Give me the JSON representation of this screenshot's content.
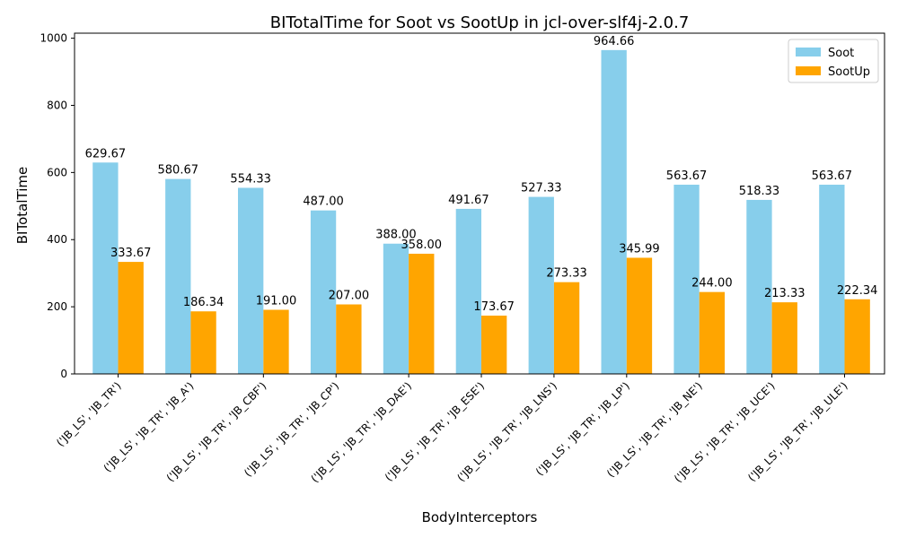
{
  "chart_data": {
    "type": "bar",
    "title": "BITotalTime for Soot vs SootUp in jcl-over-slf4j-2.0.7",
    "xlabel": "BodyInterceptors",
    "ylabel": "BITotalTime",
    "ylim": [
      0,
      1015
    ],
    "yticks": [
      0,
      200,
      400,
      600,
      800,
      1000
    ],
    "legend_position": "top-right",
    "grid": false,
    "categories": [
      "('JB_LS', 'JB_TR')",
      "('JB_LS', 'JB_TR', 'JB_A')",
      "('JB_LS', 'JB_TR', 'JB_CBF')",
      "('JB_LS', 'JB_TR', 'JB_CP')",
      "('JB_LS', 'JB_TR', 'JB_DAE')",
      "('JB_LS', 'JB_TR', 'JB_ESE')",
      "('JB_LS', 'JB_TR', 'JB_LNS')",
      "('JB_LS', 'JB_TR', 'JB_LP')",
      "('JB_LS', 'JB_TR', 'JB_NE')",
      "('JB_LS', 'JB_TR', 'JB_UCE')",
      "('JB_LS', 'JB_TR', 'JB_ULE')"
    ],
    "series": [
      {
        "name": "Soot",
        "color": "#87ceeb",
        "values": [
          629.67,
          580.67,
          554.33,
          487.0,
          388.0,
          491.67,
          527.33,
          964.66,
          563.67,
          518.33,
          563.67
        ],
        "labels": [
          "629.67",
          "580.67",
          "554.33",
          "487.00",
          "388.00",
          "491.67",
          "527.33",
          "964.66",
          "563.67",
          "518.33",
          "563.67"
        ]
      },
      {
        "name": "SootUp",
        "color": "#ffa500",
        "values": [
          333.67,
          186.34,
          191.0,
          207.0,
          358.0,
          173.67,
          273.33,
          345.99,
          244.0,
          213.33,
          222.34
        ],
        "labels": [
          "333.67",
          "186.34",
          "191.00",
          "207.00",
          "358.00",
          "173.67",
          "273.33",
          "345.99",
          "244.00",
          "213.33",
          "222.34"
        ]
      }
    ]
  }
}
